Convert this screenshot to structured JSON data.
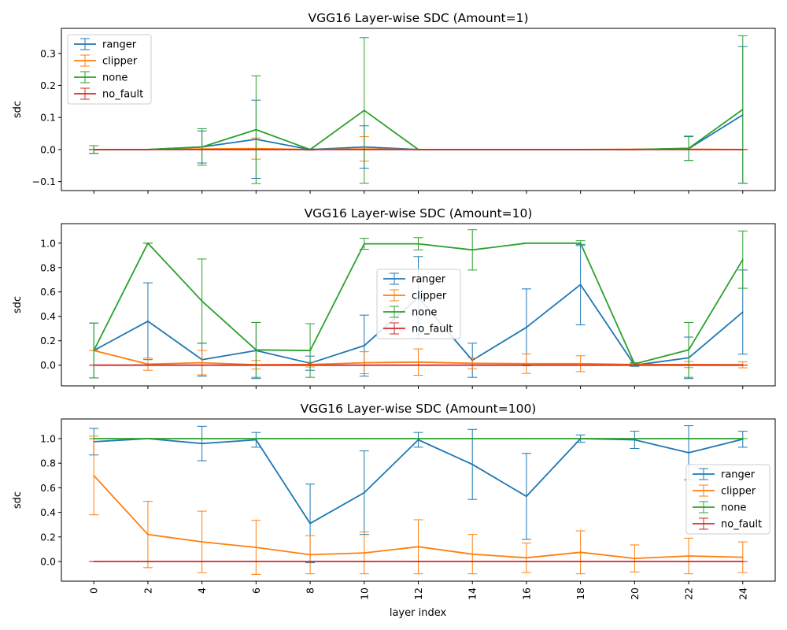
{
  "figure": {
    "xlabel": "layer index"
  },
  "colors": {
    "ranger": "#1f77b4",
    "clipper": "#ff7f0e",
    "none": "#2ca02c",
    "no_fault": "#d62728"
  },
  "chart_data": [
    {
      "type": "line",
      "title": "VGG16 Layer-wise SDC (Amount=1)",
      "xlabel": "",
      "ylabel": "sdc",
      "x": [
        0,
        2,
        4,
        6,
        8,
        10,
        12,
        14,
        16,
        18,
        20,
        22,
        24
      ],
      "xlim": [
        -1.2,
        25.2
      ],
      "ylim": [
        -0.128,
        0.378
      ],
      "yticks": [
        -0.1,
        0.0,
        0.1,
        0.2,
        0.3
      ],
      "ytick_labels": [
        "−0.1",
        "0.0",
        "0.1",
        "0.2",
        "0.3"
      ],
      "show_xtick_labels": false,
      "legend": "upper left",
      "series": [
        {
          "name": "ranger",
          "values": [
            0.0,
            0.0,
            0.008,
            0.032,
            0.0,
            0.008,
            0.0,
            0.0,
            0.0,
            0.0,
            0.0,
            0.003,
            0.108
          ],
          "errors": [
            0.012,
            0.0,
            0.05,
            0.122,
            0.002,
            0.066,
            0.0,
            0.0,
            0.0,
            0.0,
            0.0,
            0.037,
            0.213
          ]
        },
        {
          "name": "clipper",
          "values": [
            0.0,
            0.0,
            0.002,
            0.003,
            0.0,
            0.002,
            0.0,
            0.0,
            0.0,
            0.0,
            0.001,
            0.001,
            0.0
          ],
          "errors": [
            0.0,
            0.0,
            0.0,
            0.033,
            0.0,
            0.038,
            0.0,
            0.0,
            0.0,
            0.0,
            0.0,
            0.0,
            0.0
          ]
        },
        {
          "name": "none",
          "values": [
            0.0,
            0.0,
            0.008,
            0.062,
            0.0,
            0.122,
            0.0,
            0.0,
            0.0,
            0.0,
            0.0,
            0.004,
            0.125
          ],
          "errors": [
            0.012,
            0.0,
            0.057,
            0.168,
            0.0,
            0.227,
            0.0,
            0.0,
            0.0,
            0.0,
            0.0,
            0.038,
            0.23
          ]
        },
        {
          "name": "no_fault",
          "values": [
            0,
            0,
            0,
            0,
            0,
            0,
            0,
            0,
            0,
            0,
            0,
            0,
            0
          ],
          "errors": [
            0,
            0,
            0,
            0,
            0,
            0,
            0,
            0,
            0,
            0,
            0,
            0,
            0
          ]
        }
      ]
    },
    {
      "type": "line",
      "title": "VGG16 Layer-wise SDC (Amount=10)",
      "xlabel": "",
      "ylabel": "sdc",
      "x": [
        0,
        2,
        4,
        6,
        8,
        10,
        12,
        14,
        16,
        18,
        20,
        22,
        24
      ],
      "xlim": [
        -1.2,
        25.2
      ],
      "ylim": [
        -0.17,
        1.16
      ],
      "yticks": [
        0.0,
        0.2,
        0.4,
        0.6,
        0.8,
        1.0
      ],
      "ytick_labels": [
        "0.0",
        "0.2",
        "0.4",
        "0.6",
        "0.8",
        "1.0"
      ],
      "show_xtick_labels": false,
      "legend": "center",
      "series": [
        {
          "name": "ranger",
          "values": [
            0.12,
            0.36,
            0.045,
            0.12,
            0.016,
            0.16,
            0.555,
            0.04,
            0.31,
            0.66,
            0.0,
            0.06,
            0.435
          ],
          "errors": [
            0.225,
            0.315,
            0.135,
            0.23,
            0.058,
            0.25,
            0.335,
            0.14,
            0.315,
            0.33,
            0.01,
            0.17,
            0.345
          ]
        },
        {
          "name": "clipper",
          "values": [
            0.12,
            0.008,
            0.02,
            0.003,
            0.005,
            0.02,
            0.025,
            0.015,
            0.012,
            0.012,
            0.005,
            0.005,
            0.003
          ],
          "errors": [
            0.0,
            0.05,
            0.1,
            0.035,
            0.02,
            0.09,
            0.108,
            0.045,
            0.08,
            0.065,
            0.01,
            0.025,
            0.025
          ]
        },
        {
          "name": "none",
          "values": [
            0.12,
            1.0,
            0.525,
            0.125,
            0.12,
            0.995,
            0.995,
            0.945,
            1.0,
            1.0,
            0.01,
            0.125,
            0.865
          ],
          "errors": [
            0.225,
            0.0,
            0.345,
            0.225,
            0.22,
            0.045,
            0.05,
            0.165,
            0.0,
            0.02,
            0.01,
            0.225,
            0.235
          ]
        },
        {
          "name": "no_fault",
          "values": [
            0,
            0,
            0,
            0,
            0,
            0,
            0,
            0,
            0,
            0,
            0,
            0,
            0
          ],
          "errors": [
            0,
            0,
            0,
            0,
            0,
            0,
            0,
            0,
            0,
            0,
            0,
            0,
            0
          ]
        }
      ]
    },
    {
      "type": "line",
      "title": "VGG16 Layer-wise SDC (Amount=100)",
      "xlabel": "layer index",
      "ylabel": "sdc",
      "x": [
        0,
        2,
        4,
        6,
        8,
        10,
        12,
        14,
        16,
        18,
        20,
        22,
        24
      ],
      "xlim": [
        -1.2,
        25.2
      ],
      "ylim": [
        -0.16,
        1.16
      ],
      "yticks": [
        0.0,
        0.2,
        0.4,
        0.6,
        0.8,
        1.0
      ],
      "ytick_labels": [
        "0.0",
        "0.2",
        "0.4",
        "0.6",
        "0.8",
        "1.0"
      ],
      "show_xtick_labels": true,
      "xtick_labels": [
        "0",
        "2",
        "4",
        "6",
        "8",
        "10",
        "12",
        "14",
        "16",
        "18",
        "20",
        "22",
        "24"
      ],
      "legend": "center right",
      "series": [
        {
          "name": "ranger",
          "values": [
            0.975,
            1.0,
            0.96,
            0.99,
            0.31,
            0.56,
            0.99,
            0.79,
            0.53,
            1.0,
            0.99,
            0.885,
            0.995
          ],
          "errors": [
            0.108,
            0.0,
            0.14,
            0.06,
            0.32,
            0.34,
            0.06,
            0.285,
            0.35,
            0.03,
            0.07,
            0.22,
            0.065
          ]
        },
        {
          "name": "clipper",
          "values": [
            0.7,
            0.22,
            0.16,
            0.115,
            0.055,
            0.07,
            0.12,
            0.06,
            0.03,
            0.075,
            0.025,
            0.045,
            0.035
          ],
          "errors": [
            0.32,
            0.27,
            0.25,
            0.22,
            0.155,
            0.17,
            0.22,
            0.16,
            0.12,
            0.175,
            0.11,
            0.145,
            0.125
          ]
        },
        {
          "name": "none",
          "values": [
            1.0,
            1.0,
            1.0,
            1.0,
            1.0,
            1.0,
            1.0,
            1.0,
            1.0,
            1.0,
            1.0,
            1.0,
            1.0
          ],
          "errors": [
            0,
            0,
            0,
            0,
            0,
            0,
            0,
            0,
            0,
            0,
            0,
            0,
            0
          ]
        },
        {
          "name": "no_fault",
          "values": [
            0,
            0,
            0,
            0,
            0,
            0,
            0,
            0,
            0,
            0,
            0,
            0,
            0
          ],
          "errors": [
            0,
            0,
            0,
            0,
            0,
            0,
            0,
            0,
            0,
            0,
            0,
            0,
            0
          ]
        }
      ]
    }
  ]
}
